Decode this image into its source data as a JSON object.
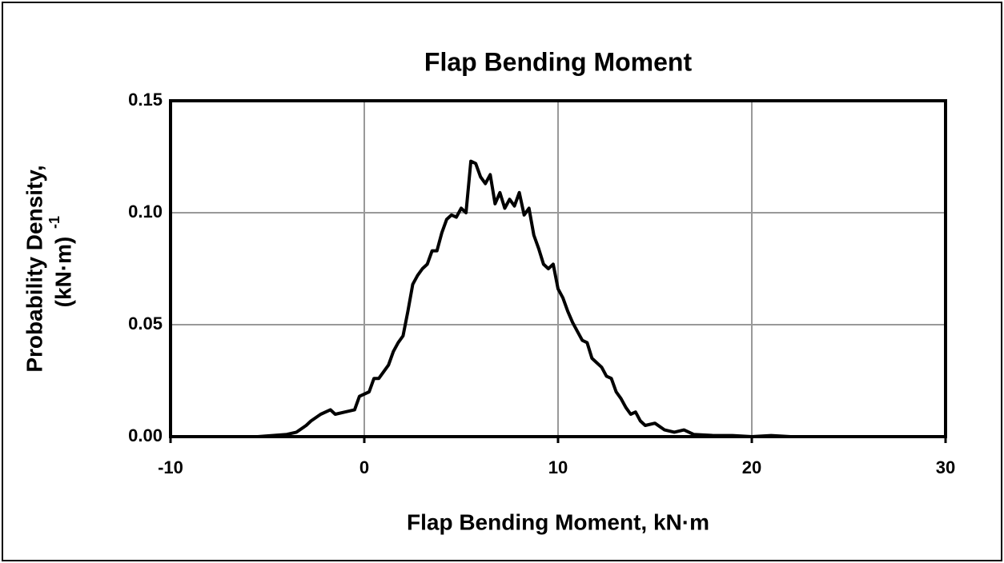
{
  "chart_data": {
    "type": "line",
    "title": "Flap Bending Moment",
    "xlabel": "Flap Bending Moment, kN·m",
    "ylabel": [
      "Probability Density,",
      "(kN·m)"
    ],
    "ylabel_superscript": "-1",
    "x": [
      -5.5,
      -4,
      -3.5,
      -3,
      -2.75,
      -2.25,
      -1.75,
      -1.5,
      -1,
      -0.5,
      -0.25,
      0.25,
      0.5,
      0.75,
      1,
      1.25,
      1.5,
      1.75,
      2,
      2.25,
      2.5,
      2.75,
      3,
      3.25,
      3.5,
      3.75,
      4,
      4.25,
      4.5,
      4.75,
      5,
      5.25,
      5.5,
      5.75,
      6,
      6.25,
      6.5,
      6.75,
      7,
      7.25,
      7.5,
      7.75,
      8,
      8.25,
      8.5,
      8.75,
      9,
      9.25,
      9.5,
      9.75,
      10,
      10.25,
      10.5,
      10.75,
      11,
      11.25,
      11.5,
      11.75,
      12,
      12.25,
      12.5,
      12.75,
      13,
      13.25,
      13.5,
      13.75,
      14,
      14.25,
      14.5,
      15,
      15.5,
      16,
      16.5,
      17,
      18,
      19,
      20,
      21,
      22,
      30
    ],
    "values": [
      0,
      0.001,
      0.002,
      0.005,
      0.007,
      0.01,
      0.012,
      0.01,
      0.011,
      0.012,
      0.018,
      0.02,
      0.026,
      0.026,
      0.029,
      0.032,
      0.038,
      0.042,
      0.045,
      0.056,
      0.068,
      0.072,
      0.075,
      0.077,
      0.083,
      0.083,
      0.091,
      0.097,
      0.099,
      0.098,
      0.102,
      0.1,
      0.123,
      0.122,
      0.116,
      0.113,
      0.117,
      0.104,
      0.109,
      0.102,
      0.106,
      0.103,
      0.109,
      0.099,
      0.102,
      0.09,
      0.084,
      0.077,
      0.075,
      0.077,
      0.066,
      0.062,
      0.056,
      0.051,
      0.047,
      0.043,
      0.042,
      0.035,
      0.033,
      0.031,
      0.027,
      0.026,
      0.02,
      0.017,
      0.013,
      0.01,
      0.011,
      0.007,
      0.005,
      0.006,
      0.003,
      0.002,
      0.003,
      0.001,
      0.0005,
      0.0005,
      0,
      0.0005,
      0,
      0
    ],
    "color": "#000000",
    "xlim": [
      -10,
      30
    ],
    "xticks": [
      -10,
      0,
      10,
      20,
      30
    ],
    "ylim": [
      0,
      0.15
    ],
    "yticks": [
      {
        "value": 0,
        "label": "0.00"
      },
      0.05,
      {
        "value": 0.1,
        "label": "0.10"
      },
      0.15
    ],
    "grid": true
  }
}
